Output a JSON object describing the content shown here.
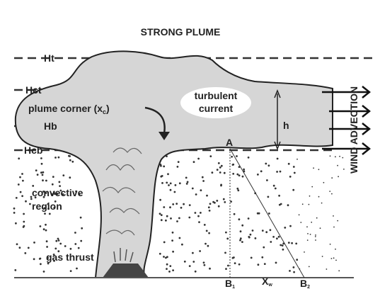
{
  "title": "STRONG PLUME",
  "levels": {
    "ht": "Ht",
    "hct": "Hct",
    "hb": "Hb",
    "hcb": "Hcb"
  },
  "labels": {
    "turbulent_current": [
      "turbulent",
      "current"
    ],
    "plume_corner": {
      "text": "plume corner (x",
      "sub": "c",
      "end": ")"
    },
    "h": "h",
    "a": "A",
    "wind_advection": "WIND ADVECTION",
    "convective_region": [
      "convective",
      "region"
    ],
    "gas_thrust": "gas thrust",
    "b1": {
      "text": "B",
      "sub": "1"
    },
    "xw": {
      "text": "X",
      "sub": "w"
    },
    "b2": {
      "text": "B",
      "sub": "2"
    }
  }
}
